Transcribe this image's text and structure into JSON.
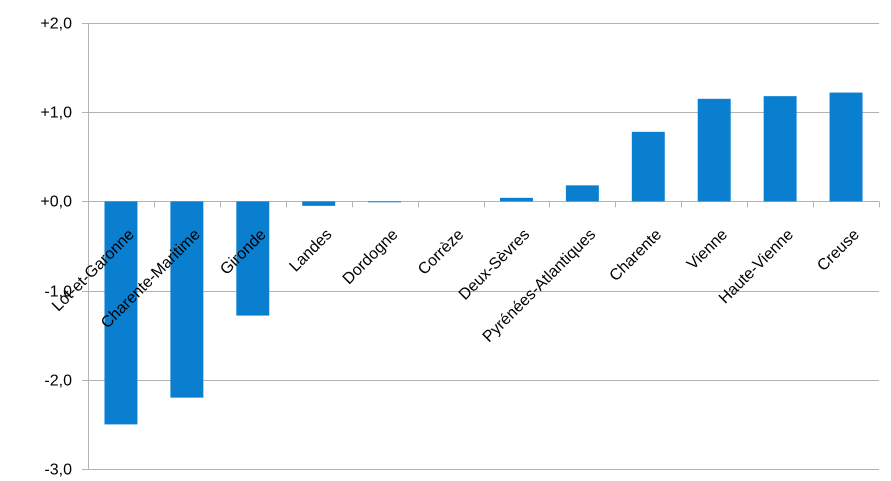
{
  "chart_data": {
    "type": "bar",
    "title_fragment": ", ... ... ... p...",
    "categories": [
      "Lot-et-Garonne",
      "Charente-Maritime",
      "Gironde",
      "Landes",
      "Dordogne",
      "Corrèze",
      "Deux-Sèvres",
      "Pyrénées-Atlantiques",
      "Charente",
      "Vienne",
      "Haute-Vienne",
      "Creuse"
    ],
    "values": [
      -2.5,
      -2.2,
      -1.28,
      -0.05,
      -0.01,
      0.0,
      0.04,
      0.18,
      0.78,
      1.15,
      1.18,
      1.22
    ],
    "ylim": [
      -3.0,
      2.0
    ],
    "yticks": [
      2.0,
      1.0,
      0.0,
      -1.0,
      -2.0,
      -3.0
    ],
    "ytick_labels": [
      "+2,0",
      "+1,0",
      "+0,0",
      "-1,0",
      "-2,0",
      "-3,0"
    ],
    "grid": true,
    "bar_color": "#0a7fcf",
    "grid_color": "#b3b3b3"
  }
}
